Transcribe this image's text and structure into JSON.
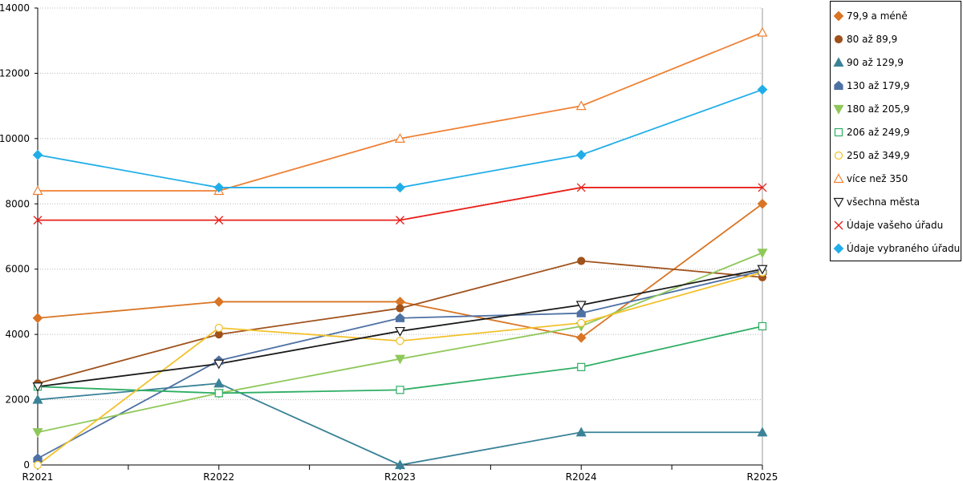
{
  "chart_data": {
    "type": "line",
    "categories": [
      "R2021",
      "R2022",
      "R2023",
      "R2024",
      "R2025"
    ],
    "ylim": [
      0,
      14000
    ],
    "yticks": [
      0,
      2000,
      4000,
      6000,
      8000,
      10000,
      12000,
      14000
    ],
    "grid": "horizontal-dotted",
    "legend_position": "right",
    "series": [
      {
        "name": "79,9 a méně",
        "color": "#d97524",
        "marker": "diamond",
        "filled": true,
        "values": [
          4500,
          5000,
          5000,
          3900,
          8000
        ]
      },
      {
        "name": "80 až 89,9",
        "color": "#a0521c",
        "marker": "circle",
        "filled": true,
        "values": [
          2500,
          4000,
          4800,
          6250,
          5750
        ]
      },
      {
        "name": "90 až 129,9",
        "color": "#3a8297",
        "marker": "triangle-up",
        "filled": true,
        "values": [
          2000,
          2500,
          0,
          1000,
          1000
        ]
      },
      {
        "name": "130 až 179,9",
        "color": "#4e71a4",
        "marker": "pentagon",
        "filled": true,
        "values": [
          200,
          3200,
          4500,
          4650,
          5950
        ]
      },
      {
        "name": "180 až 205,9",
        "color": "#8fc85a",
        "marker": "triangle-down",
        "filled": true,
        "values": [
          1000,
          2200,
          3250,
          4250,
          6500
        ]
      },
      {
        "name": "206 až 249,9",
        "color": "#2eae64",
        "marker": "square",
        "filled": false,
        "values": [
          2400,
          2200,
          2300,
          3000,
          4250
        ]
      },
      {
        "name": "250 až 349,9",
        "color": "#f2c12c",
        "marker": "circle",
        "filled": false,
        "values": [
          0,
          4200,
          3800,
          4350,
          5900
        ]
      },
      {
        "name": "více než 350",
        "color": "#ef8034",
        "marker": "triangle-up",
        "filled": false,
        "values": [
          8400,
          8400,
          10000,
          11000,
          13250
        ]
      },
      {
        "name": "všechna města",
        "color": "#1a1a1a",
        "marker": "triangle-down",
        "filled": false,
        "values": [
          2400,
          3100,
          4100,
          4900,
          6000
        ]
      },
      {
        "name": "Údaje vašeho úřadu",
        "color": "#e8201a",
        "marker": "cross",
        "filled": false,
        "values": [
          7500,
          7500,
          7500,
          8500,
          8500
        ]
      },
      {
        "name": "Údaje vybraného úřadu",
        "color": "#21aee8",
        "marker": "diamond",
        "filled": true,
        "values": [
          9500,
          8500,
          8500,
          9500,
          11500
        ]
      }
    ]
  }
}
